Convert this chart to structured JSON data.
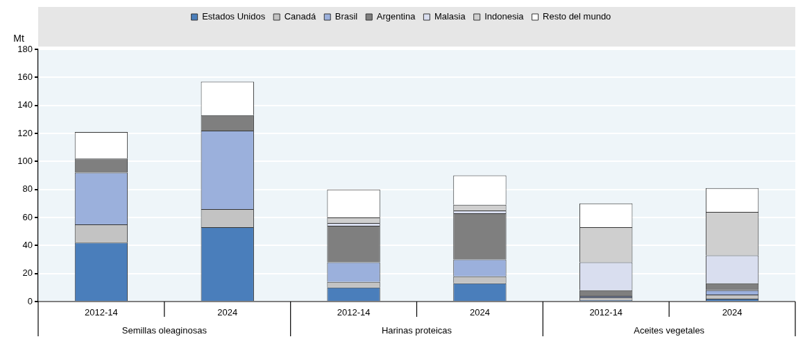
{
  "chart_data": {
    "type": "bar",
    "stacked": true,
    "ylabel": "Mt",
    "categories": [
      "2012-14",
      "2024",
      "2012-14",
      "2024",
      "2012-14",
      "2024"
    ],
    "annotations": [
      "Semillas oleaginosas",
      "Harinas proteicas",
      "Aceites vegetales"
    ],
    "series": [
      {
        "name": "Estados Unidos",
        "color": "#4a7ebb",
        "values": [
          42,
          53,
          10,
          13,
          1,
          2
        ]
      },
      {
        "name": "Canadá",
        "color": "#c3c3c3",
        "values": [
          13,
          13,
          4,
          5,
          2,
          3
        ]
      },
      {
        "name": "Brasil",
        "color": "#9bb0dc",
        "values": [
          37,
          56,
          14,
          12,
          1,
          3
        ]
      },
      {
        "name": "Argentina",
        "color": "#7f7f7f",
        "values": [
          10,
          11,
          26,
          33,
          4,
          5
        ]
      },
      {
        "name": "Malasia",
        "color": "#d9deef",
        "values": [
          0,
          0,
          2,
          2,
          20,
          20
        ]
      },
      {
        "name": "Indonesia",
        "color": "#cfcfcf",
        "values": [
          0,
          0,
          4,
          4,
          25,
          31
        ]
      },
      {
        "name": "Resto del mundo",
        "color": "#ffffff",
        "values": [
          19,
          24,
          20,
          21,
          17,
          17
        ]
      }
    ],
    "ylim": [
      0,
      180
    ],
    "yticks": [
      0,
      20,
      40,
      60,
      80,
      100,
      120,
      140,
      160,
      180
    ],
    "grid": "y",
    "legend": "top"
  }
}
